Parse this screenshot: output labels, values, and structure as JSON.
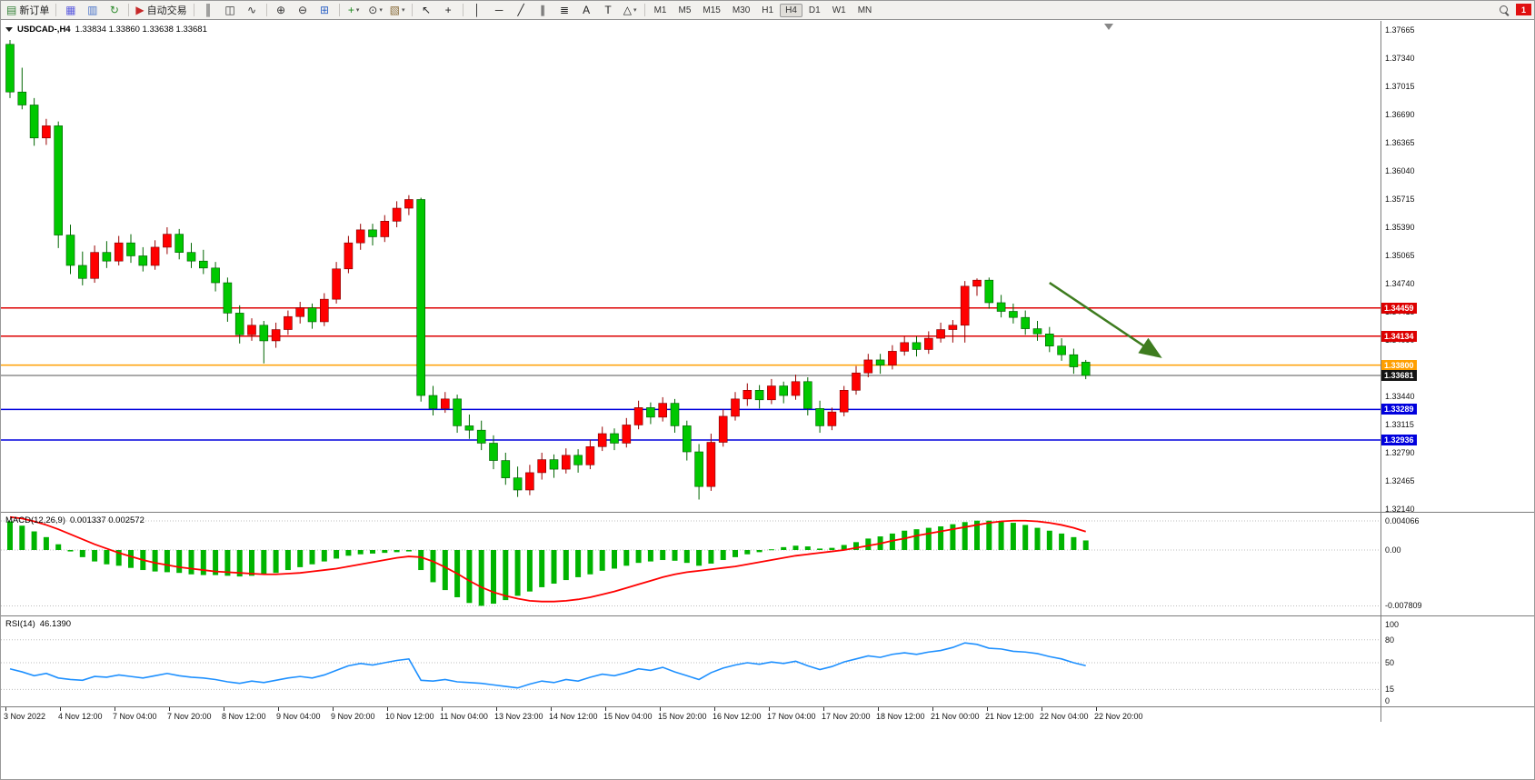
{
  "app": {
    "notification_badge": "1"
  },
  "toolbar": {
    "items": [
      {
        "t": "btn",
        "name": "new-order-button",
        "glyph": "▤",
        "glyph_color": "#2e7d32",
        "label": "新订单"
      },
      {
        "t": "sep"
      },
      {
        "t": "btn",
        "name": "charts-window-button",
        "glyph": "▦",
        "glyph_color": "#5a5adf"
      },
      {
        "t": "btn",
        "name": "data-window-button",
        "glyph": "▥",
        "glyph_color": "#4a74c8"
      },
      {
        "t": "btn",
        "name": "refresh-button",
        "glyph": "↻",
        "glyph_color": "#2e8b2e"
      },
      {
        "t": "sep"
      },
      {
        "t": "btn",
        "name": "auto-trading-button",
        "glyph": "▶",
        "glyph_color": "#c62828",
        "label": "自动交易"
      },
      {
        "t": "sep"
      },
      {
        "t": "btn",
        "name": "bar-chart-type-button",
        "glyph": "║",
        "glyph_color": "#333333"
      },
      {
        "t": "btn",
        "name": "candlestick-chart-type-button",
        "glyph": "◫",
        "glyph_color": "#333333"
      },
      {
        "t": "btn",
        "name": "line-chart-type-button",
        "glyph": "∿",
        "glyph_color": "#333333"
      },
      {
        "t": "sep"
      },
      {
        "t": "btn",
        "name": "zoom-in-button",
        "glyph": "⊕",
        "glyph_color": "#333333"
      },
      {
        "t": "btn",
        "name": "zoom-out-button",
        "glyph": "⊖",
        "glyph_color": "#333333"
      },
      {
        "t": "btn",
        "name": "tile-windows-button",
        "glyph": "⊞",
        "glyph_color": "#3367c8"
      },
      {
        "t": "sep"
      },
      {
        "t": "btn",
        "name": "indicators-button",
        "glyph": "+",
        "glyph_color": "#1d8a1d",
        "caret": true
      },
      {
        "t": "btn",
        "name": "periods-button",
        "glyph": "⊙",
        "glyph_color": "#333333",
        "caret": true
      },
      {
        "t": "btn",
        "name": "templates-button",
        "glyph": "▧",
        "glyph_color": "#8a6d3b",
        "caret": true
      },
      {
        "t": "sep"
      },
      {
        "t": "btn",
        "name": "cursor-button",
        "glyph": "↖",
        "glyph_color": "#222222"
      },
      {
        "t": "btn",
        "name": "crosshair-button",
        "glyph": "+",
        "glyph_color": "#222222"
      },
      {
        "t": "sep"
      },
      {
        "t": "btn",
        "name": "vertical-line-button",
        "glyph": "│",
        "glyph_color": "#222222"
      },
      {
        "t": "btn",
        "name": "horizontal-line-button",
        "glyph": "─",
        "glyph_color": "#222222"
      },
      {
        "t": "btn",
        "name": "trendline-button",
        "glyph": "╱",
        "glyph_color": "#222222"
      },
      {
        "t": "btn",
        "name": "channel-button",
        "glyph": "∥",
        "glyph_color": "#222222"
      },
      {
        "t": "btn",
        "name": "fibonacci-button",
        "glyph": "≣",
        "glyph_color": "#222222"
      },
      {
        "t": "btn",
        "name": "text-button",
        "glyph": "A",
        "glyph_color": "#222222"
      },
      {
        "t": "btn",
        "name": "text-label-button",
        "glyph": "T",
        "glyph_color": "#222222"
      },
      {
        "t": "btn",
        "name": "shapes-button",
        "glyph": "△",
        "glyph_color": "#222222",
        "caret": true
      },
      {
        "t": "sep"
      }
    ],
    "timeframes": [
      "M1",
      "M5",
      "M15",
      "M30",
      "H1",
      "H4",
      "D1",
      "W1",
      "MN"
    ],
    "active_timeframe": "H4"
  },
  "main": {
    "symbol_title": "USDCAD-,H4",
    "ohlc_text": "1.33834 1.33860 1.33638 1.33681"
  },
  "macd": {
    "label": "MACD(12,26,9)",
    "values": "0.001337 0.002572",
    "axis_labels": [
      "0.004066",
      "0.00",
      "-0.007809"
    ]
  },
  "rsi": {
    "label": "RSI(14)",
    "value": "46.1390",
    "axis_labels": [
      "100",
      "80",
      "50",
      "15",
      "0"
    ]
  },
  "chart_data": [
    {
      "type": "candlestick",
      "symbol": "USDCAD-",
      "timeframe": "H4",
      "current_bar": {
        "open": 1.33834,
        "high": 1.3386,
        "low": 1.33638,
        "close": 1.33681
      },
      "bull_color": "#ff0000",
      "bear_color": "#00c800",
      "price_axis": {
        "min": 1.3214,
        "max": 1.37665,
        "step": 0.00325,
        "ticks": [
          "1.37665",
          "1.37340",
          "1.37015",
          "1.36690",
          "1.36365",
          "1.36040",
          "1.35715",
          "1.35390",
          "1.35065",
          "1.34740",
          "1.34415",
          "1.34090",
          "1.33765",
          "1.33440",
          "1.33115",
          "1.32790",
          "1.32465",
          "1.32140"
        ]
      },
      "time_axis": [
        "3 Nov 2022",
        "4 Nov 12:00",
        "7 Nov 04:00",
        "7 Nov 20:00",
        "8 Nov 12:00",
        "9 Nov 04:00",
        "9 Nov 20:00",
        "10 Nov 12:00",
        "11 Nov 04:00",
        "13 Nov 23:00",
        "14 Nov 12:00",
        "15 Nov 04:00",
        "15 Nov 20:00",
        "16 Nov 12:00",
        "17 Nov 04:00",
        "17 Nov 20:00",
        "18 Nov 12:00",
        "21 Nov 00:00",
        "21 Nov 12:00",
        "22 Nov 04:00",
        "22 Nov 20:00"
      ],
      "hlines": [
        {
          "price": 1.34459,
          "label": "1.34459",
          "color": "#dd0000",
          "type": "resistance"
        },
        {
          "price": 1.34134,
          "label": "1.34134",
          "color": "#dd0000",
          "type": "resistance"
        },
        {
          "price": 1.338,
          "label": "1.33800",
          "color": "#ff9f00",
          "type": "pivot"
        },
        {
          "price": 1.33289,
          "label": "1.33289",
          "color": "#0000dd",
          "type": "support"
        },
        {
          "price": 1.32936,
          "label": "1.32936",
          "color": "#0000dd",
          "type": "support"
        }
      ],
      "bid_line": {
        "price": 1.33681,
        "label": "1.33681",
        "line_color": "#555555",
        "badge_bg": "#141414"
      },
      "annotations": [
        {
          "type": "arrow",
          "from_index": 86,
          "from_price": 1.3475,
          "to_index": 95,
          "to_price": 1.3391,
          "color": "#3e7c1f"
        }
      ],
      "candles": [
        [
          1.375,
          1.3755,
          1.3688,
          1.3695
        ],
        [
          1.3695,
          1.3723,
          1.3675,
          1.368
        ],
        [
          1.368,
          1.3688,
          1.3633,
          1.3642
        ],
        [
          1.3642,
          1.3664,
          1.3634,
          1.3656
        ],
        [
          1.3656,
          1.3661,
          1.3515,
          1.353
        ],
        [
          1.353,
          1.3542,
          1.3485,
          1.3495
        ],
        [
          1.3495,
          1.3511,
          1.3472,
          1.348
        ],
        [
          1.348,
          1.3518,
          1.3475,
          1.351
        ],
        [
          1.351,
          1.3523,
          1.3492,
          1.35
        ],
        [
          1.35,
          1.3529,
          1.3495,
          1.3521
        ],
        [
          1.3521,
          1.3531,
          1.3498,
          1.3506
        ],
        [
          1.3506,
          1.3516,
          1.3488,
          1.3495
        ],
        [
          1.3495,
          1.3524,
          1.349,
          1.3516
        ],
        [
          1.3516,
          1.3539,
          1.3508,
          1.3531
        ],
        [
          1.3531,
          1.3537,
          1.3502,
          1.351
        ],
        [
          1.351,
          1.3521,
          1.3492,
          1.35
        ],
        [
          1.35,
          1.3513,
          1.3485,
          1.3492
        ],
        [
          1.3492,
          1.3499,
          1.3465,
          1.3475
        ],
        [
          1.3475,
          1.3481,
          1.343,
          1.344
        ],
        [
          1.344,
          1.3449,
          1.3405,
          1.3415
        ],
        [
          1.3415,
          1.3434,
          1.3408,
          1.3426
        ],
        [
          1.3426,
          1.3431,
          1.3382,
          1.3408
        ],
        [
          1.3408,
          1.3429,
          1.34,
          1.3421
        ],
        [
          1.3421,
          1.3443,
          1.3415,
          1.3436
        ],
        [
          1.3436,
          1.3453,
          1.3428,
          1.3446
        ],
        [
          1.3446,
          1.3451,
          1.3422,
          1.343
        ],
        [
          1.343,
          1.3463,
          1.3425,
          1.3456
        ],
        [
          1.3456,
          1.3499,
          1.3451,
          1.3491
        ],
        [
          1.3491,
          1.3529,
          1.3486,
          1.3521
        ],
        [
          1.3521,
          1.3543,
          1.3513,
          1.3536
        ],
        [
          1.3536,
          1.3543,
          1.3518,
          1.3528
        ],
        [
          1.3528,
          1.3553,
          1.3522,
          1.3546
        ],
        [
          1.3546,
          1.3569,
          1.3539,
          1.3561
        ],
        [
          1.3561,
          1.3576,
          1.3553,
          1.3571
        ],
        [
          1.3571,
          1.3573,
          1.3338,
          1.3345
        ],
        [
          1.3345,
          1.3356,
          1.3322,
          1.333
        ],
        [
          1.333,
          1.3349,
          1.3325,
          1.3341
        ],
        [
          1.3341,
          1.3346,
          1.3302,
          1.331
        ],
        [
          1.331,
          1.3323,
          1.3295,
          1.3305
        ],
        [
          1.3305,
          1.3316,
          1.3282,
          1.329
        ],
        [
          1.329,
          1.3299,
          1.326,
          1.327
        ],
        [
          1.327,
          1.3279,
          1.3242,
          1.325
        ],
        [
          1.325,
          1.3263,
          1.3228,
          1.3236
        ],
        [
          1.3236,
          1.3265,
          1.323,
          1.3256
        ],
        [
          1.3256,
          1.3279,
          1.3248,
          1.3271
        ],
        [
          1.3271,
          1.3277,
          1.325,
          1.326
        ],
        [
          1.326,
          1.3284,
          1.3255,
          1.3276
        ],
        [
          1.3276,
          1.3283,
          1.3256,
          1.3265
        ],
        [
          1.3265,
          1.3294,
          1.326,
          1.3286
        ],
        [
          1.3286,
          1.3309,
          1.3281,
          1.3301
        ],
        [
          1.3301,
          1.3307,
          1.3282,
          1.329
        ],
        [
          1.329,
          1.3319,
          1.3285,
          1.3311
        ],
        [
          1.3311,
          1.3339,
          1.3306,
          1.3331
        ],
        [
          1.3331,
          1.3337,
          1.3312,
          1.332
        ],
        [
          1.332,
          1.3343,
          1.3315,
          1.3336
        ],
        [
          1.3336,
          1.3341,
          1.3302,
          1.331
        ],
        [
          1.331,
          1.3316,
          1.327,
          1.328
        ],
        [
          1.328,
          1.3289,
          1.3225,
          1.324
        ],
        [
          1.324,
          1.3301,
          1.3235,
          1.3291
        ],
        [
          1.3291,
          1.3329,
          1.3286,
          1.3321
        ],
        [
          1.3321,
          1.3349,
          1.3316,
          1.3341
        ],
        [
          1.3341,
          1.3359,
          1.3333,
          1.3351
        ],
        [
          1.3351,
          1.3357,
          1.333,
          1.334
        ],
        [
          1.334,
          1.3364,
          1.3335,
          1.3356
        ],
        [
          1.3356,
          1.3361,
          1.3336,
          1.3345
        ],
        [
          1.3345,
          1.3369,
          1.334,
          1.3361
        ],
        [
          1.3361,
          1.3366,
          1.3322,
          1.333
        ],
        [
          1.333,
          1.3339,
          1.3302,
          1.331
        ],
        [
          1.331,
          1.3331,
          1.3305,
          1.3326
        ],
        [
          1.3326,
          1.3356,
          1.3321,
          1.3351
        ],
        [
          1.3351,
          1.3379,
          1.3346,
          1.3371
        ],
        [
          1.3371,
          1.3393,
          1.3366,
          1.3386
        ],
        [
          1.3386,
          1.3393,
          1.337,
          1.338
        ],
        [
          1.338,
          1.3403,
          1.3375,
          1.3396
        ],
        [
          1.3396,
          1.3413,
          1.3391,
          1.3406
        ],
        [
          1.3406,
          1.3413,
          1.339,
          1.3398
        ],
        [
          1.3398,
          1.3419,
          1.3393,
          1.3411
        ],
        [
          1.3411,
          1.3429,
          1.3406,
          1.3421
        ],
        [
          1.3421,
          1.3432,
          1.3406,
          1.3426
        ],
        [
          1.3426,
          1.3477,
          1.3406,
          1.3471
        ],
        [
          1.3471,
          1.348,
          1.346,
          1.3478
        ],
        [
          1.3478,
          1.3481,
          1.3445,
          1.3452
        ],
        [
          1.3452,
          1.3461,
          1.3435,
          1.3442
        ],
        [
          1.3442,
          1.3451,
          1.3428,
          1.3435
        ],
        [
          1.3435,
          1.3443,
          1.3415,
          1.3422
        ],
        [
          1.3422,
          1.3431,
          1.3408,
          1.3416
        ],
        [
          1.3416,
          1.3424,
          1.3395,
          1.3402
        ],
        [
          1.3402,
          1.3411,
          1.3385,
          1.3392
        ],
        [
          1.3392,
          1.3399,
          1.337,
          1.3378
        ],
        [
          1.33834,
          1.3386,
          1.33638,
          1.33681
        ]
      ]
    },
    {
      "type": "bar",
      "name": "MACD(12,26,9)",
      "current_values": [
        0.001337,
        0.002572
      ],
      "hist_color": "#00b400",
      "signal_color": "#ff0000",
      "axis": {
        "max": 0.004066,
        "zero": 0,
        "min": -0.007809
      },
      "histogram": [
        0.004,
        0.0034,
        0.0026,
        0.0018,
        0.0008,
        -0.0002,
        -0.001,
        -0.0016,
        -0.002,
        -0.0022,
        -0.0025,
        -0.0028,
        -0.003,
        -0.0031,
        -0.0032,
        -0.0034,
        -0.0035,
        -0.0035,
        -0.0036,
        -0.0037,
        -0.0036,
        -0.0034,
        -0.0032,
        -0.0028,
        -0.0024,
        -0.002,
        -0.0016,
        -0.0012,
        -0.0008,
        -0.0006,
        -0.0005,
        -0.0004,
        -0.0003,
        -0.0002,
        -0.0028,
        -0.0045,
        -0.0056,
        -0.0066,
        -0.0074,
        -0.0078,
        -0.0075,
        -0.007,
        -0.0064,
        -0.0058,
        -0.0052,
        -0.0047,
        -0.0042,
        -0.0038,
        -0.0034,
        -0.0029,
        -0.0026,
        -0.0022,
        -0.0018,
        -0.0016,
        -0.0014,
        -0.0015,
        -0.0018,
        -0.0022,
        -0.0019,
        -0.0014,
        -0.001,
        -0.0006,
        -0.0003,
        0.0001,
        0.0004,
        0.0006,
        0.0005,
        0.0002,
        0.0003,
        0.0007,
        0.0011,
        0.0016,
        0.0019,
        0.0023,
        0.0027,
        0.0029,
        0.0031,
        0.0033,
        0.0036,
        0.0039,
        0.0041,
        0.0041,
        0.004,
        0.0038,
        0.0035,
        0.0031,
        0.0027,
        0.0023,
        0.0018,
        0.001337
      ],
      "signal": [
        0.0046,
        0.0044,
        0.004,
        0.0035,
        0.0029,
        0.0022,
        0.0015,
        0.0008,
        0.0002,
        -0.0004,
        -0.0009,
        -0.0014,
        -0.0018,
        -0.0021,
        -0.0024,
        -0.0026,
        -0.0028,
        -0.003,
        -0.0031,
        -0.0032,
        -0.0033,
        -0.0034,
        -0.0034,
        -0.0033,
        -0.0032,
        -0.003,
        -0.0028,
        -0.0026,
        -0.0023,
        -0.002,
        -0.0017,
        -0.0014,
        -0.0011,
        -0.0009,
        -0.001,
        -0.0016,
        -0.0024,
        -0.0033,
        -0.0043,
        -0.0052,
        -0.0059,
        -0.0064,
        -0.0068,
        -0.0071,
        -0.0072,
        -0.0072,
        -0.0071,
        -0.0069,
        -0.0066,
        -0.0062,
        -0.0058,
        -0.0053,
        -0.0048,
        -0.0043,
        -0.0038,
        -0.0034,
        -0.0031,
        -0.0029,
        -0.0027,
        -0.0025,
        -0.0023,
        -0.002,
        -0.0017,
        -0.0014,
        -0.0011,
        -0.0008,
        -0.0006,
        -0.0004,
        -0.0002,
        0.0,
        0.0003,
        0.0006,
        0.0009,
        0.0013,
        0.0016,
        0.002,
        0.0023,
        0.0026,
        0.0029,
        0.0032,
        0.0035,
        0.0038,
        0.004,
        0.0041,
        0.0041,
        0.004,
        0.0038,
        0.0035,
        0.0031,
        0.002572
      ]
    },
    {
      "type": "line",
      "name": "RSI(14)",
      "current_value": 46.139,
      "line_color": "#1e90ff",
      "levels": [
        80,
        50,
        15
      ],
      "scale": [
        0,
        100
      ],
      "values": [
        42,
        38,
        33,
        36,
        30,
        28,
        27,
        32,
        31,
        34,
        32,
        30,
        33,
        36,
        33,
        31,
        30,
        28,
        25,
        23,
        26,
        24,
        27,
        30,
        32,
        30,
        34,
        40,
        46,
        49,
        47,
        50,
        53,
        55,
        27,
        26,
        28,
        25,
        24,
        23,
        21,
        19,
        17,
        22,
        26,
        24,
        28,
        26,
        31,
        35,
        33,
        37,
        42,
        40,
        44,
        38,
        33,
        28,
        37,
        43,
        47,
        50,
        48,
        51,
        49,
        52,
        46,
        41,
        45,
        51,
        55,
        59,
        57,
        61,
        63,
        61,
        64,
        66,
        70,
        76,
        74,
        69,
        68,
        65,
        64,
        62,
        58,
        55,
        50,
        46.14
      ]
    }
  ]
}
